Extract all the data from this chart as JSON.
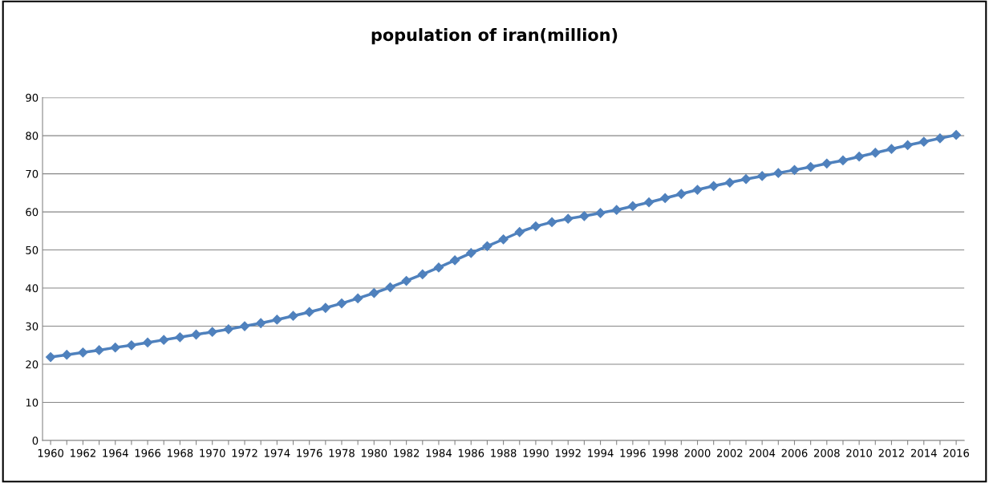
{
  "chart_data": {
    "type": "line",
    "title": "population of iran(million)",
    "categories": [
      "1960",
      null,
      "1962",
      null,
      "1964",
      null,
      "1966",
      null,
      "1968",
      null,
      "1970",
      null,
      "1972",
      null,
      "1974",
      null,
      "1976",
      null,
      "1978",
      null,
      "1980",
      null,
      "1982",
      null,
      "1984",
      null,
      "1986",
      null,
      "1988",
      null,
      "1990",
      null,
      "1992",
      null,
      "1994",
      null,
      "1996",
      null,
      "1998",
      null,
      "2000",
      null,
      "2002",
      null,
      "2004",
      null,
      "2006",
      null,
      "2008",
      null,
      "2010",
      null,
      "2012",
      null,
      "2014",
      null,
      "2016"
    ],
    "series": [
      {
        "color": "#4f81bd",
        "values": [
          21.9,
          22.5,
          23.1,
          23.7,
          24.4,
          25.0,
          25.7,
          26.4,
          27.1,
          27.8,
          28.5,
          29.2,
          30.0,
          30.8,
          31.7,
          32.7,
          33.7,
          34.8,
          36.0,
          37.3,
          38.7,
          40.2,
          41.9,
          43.6,
          45.4,
          47.3,
          49.2,
          51.0,
          52.8,
          54.7,
          56.2,
          57.3,
          58.2,
          58.9,
          59.7,
          60.5,
          61.5,
          62.5,
          63.6,
          64.7,
          65.8,
          66.8,
          67.7,
          68.6,
          69.4,
          70.2,
          71.0,
          71.8,
          72.7,
          73.5,
          74.5,
          75.5,
          76.5,
          77.5,
          78.4,
          79.3,
          80.2
        ]
      }
    ],
    "ylim": [
      0,
      90
    ],
    "yticks": [
      0,
      10,
      20,
      30,
      40,
      50,
      60,
      70,
      80,
      90
    ],
    "grid": "y",
    "marker": "diamond",
    "line_style": "solid"
  }
}
